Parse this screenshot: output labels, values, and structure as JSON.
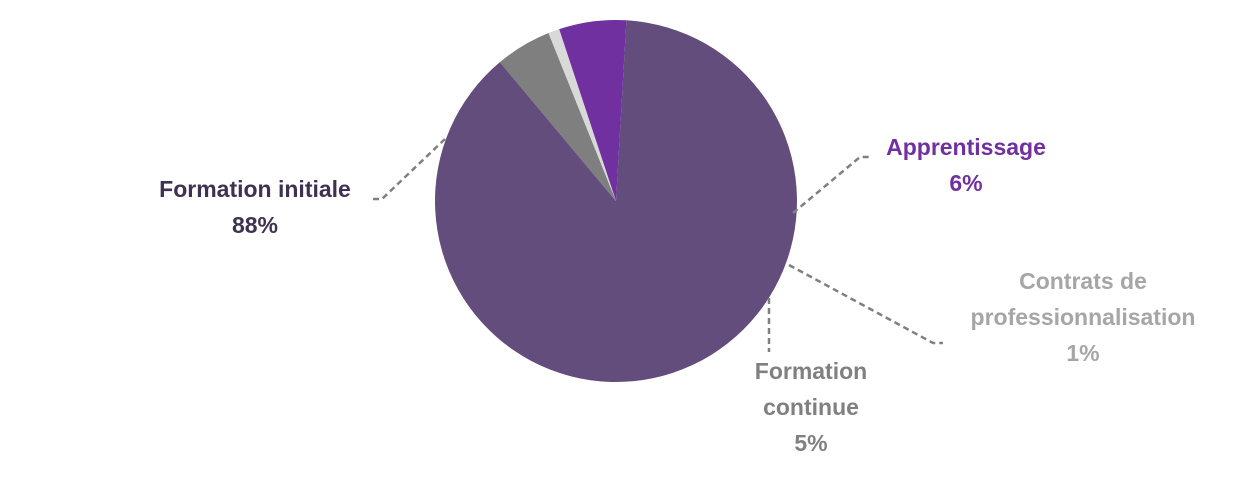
{
  "chart_data": {
    "type": "pie",
    "title": "",
    "slices": [
      {
        "label": "Formation initiale",
        "label_lines": [
          "Formation initiale"
        ],
        "value": 88,
        "value_label": "88%",
        "color": "#634D7D",
        "label_color": "#3F3151"
      },
      {
        "label": "Formation continue",
        "label_lines": [
          "Formation",
          "continue"
        ],
        "value": 5,
        "value_label": "5%",
        "color": "#7F7F7F",
        "label_color": "#808080"
      },
      {
        "label": "Contrats de professionnalisation",
        "label_lines": [
          "Contrats de",
          "professionnalisation"
        ],
        "value": 1,
        "value_label": "1%",
        "color": "#D9D9D9",
        "label_color": "#A6A6A6"
      },
      {
        "label": "Apprentissage",
        "label_lines": [
          "Apprentissage"
        ],
        "value": 6,
        "value_label": "6%",
        "color": "#7030A0",
        "label_color": "#7030A0"
      }
    ],
    "legend": "none",
    "leader_line_color": "#808080"
  }
}
